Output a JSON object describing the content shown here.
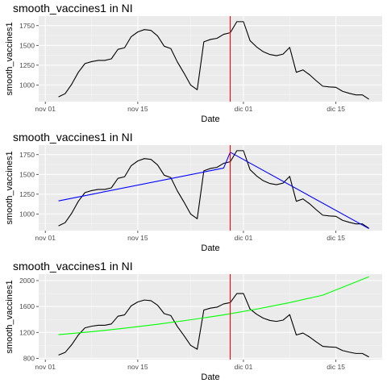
{
  "colors": {
    "panel_bg": "#ebebeb",
    "grid_major": "#ffffff",
    "data_line": "#000000",
    "vline": "#ff0000",
    "trend_panel2": "#0000ff",
    "trend_panel3": "#00ff00",
    "tick_text": "#4d4d4d"
  },
  "chart_data": [
    {
      "type": "line",
      "title": "smooth_vaccines1 in NI",
      "xlabel": "Date",
      "ylabel": "smooth_vaccines1",
      "x_ticks": [
        "nov 01",
        "nov 15",
        "dic 01",
        "dic 15"
      ],
      "y_ticks": [
        1000,
        1250,
        1500,
        1750
      ],
      "xlim": [
        "2020-10-31",
        "2020-12-22"
      ],
      "ylim": [
        790,
        1870
      ],
      "grid": true,
      "vline": "2020-11-29",
      "series": [
        {
          "x": [
            "2020-11-03",
            "2020-11-04",
            "2020-11-05",
            "2020-11-06",
            "2020-11-07",
            "2020-11-08",
            "2020-11-09",
            "2020-11-10",
            "2020-11-11",
            "2020-11-12",
            "2020-11-13",
            "2020-11-14",
            "2020-11-15",
            "2020-11-16",
            "2020-11-17",
            "2020-11-18",
            "2020-11-19",
            "2020-11-20",
            "2020-11-21",
            "2020-11-22",
            "2020-11-23",
            "2020-11-24",
            "2020-11-25",
            "2020-11-26",
            "2020-11-27",
            "2020-11-28",
            "2020-11-29",
            "2020-11-30",
            "2020-12-01",
            "2020-12-02",
            "2020-12-03",
            "2020-12-04",
            "2020-12-05",
            "2020-12-06",
            "2020-12-07",
            "2020-12-08",
            "2020-12-09",
            "2020-12-10",
            "2020-12-11",
            "2020-12-12",
            "2020-12-13",
            "2020-12-14",
            "2020-12-15",
            "2020-12-16",
            "2020-12-17",
            "2020-12-18",
            "2020-12-19",
            "2020-12-20"
          ],
          "y": [
            850,
            890,
            1010,
            1160,
            1270,
            1295,
            1310,
            1310,
            1330,
            1450,
            1470,
            1610,
            1670,
            1700,
            1690,
            1620,
            1490,
            1460,
            1290,
            1150,
            1000,
            940,
            1545,
            1575,
            1590,
            1640,
            1660,
            1800,
            1800,
            1560,
            1480,
            1420,
            1385,
            1370,
            1390,
            1475,
            1160,
            1190,
            1130,
            1055,
            985,
            975,
            970,
            920,
            895,
            875,
            875,
            820
          ]
        }
      ]
    },
    {
      "type": "line",
      "title": "smooth_vaccines1 in NI",
      "xlabel": "Date",
      "ylabel": "smooth_vaccines1",
      "x_ticks": [
        "nov 01",
        "nov 15",
        "dic 01",
        "dic 15"
      ],
      "y_ticks": [
        1000,
        1250,
        1500,
        1750
      ],
      "xlim": [
        "2020-10-31",
        "2020-12-22"
      ],
      "ylim": [
        790,
        1870
      ],
      "grid": true,
      "vline": "2020-11-29",
      "series": [
        {
          "x": [
            "2020-11-03",
            "2020-11-04",
            "2020-11-05",
            "2020-11-06",
            "2020-11-07",
            "2020-11-08",
            "2020-11-09",
            "2020-11-10",
            "2020-11-11",
            "2020-11-12",
            "2020-11-13",
            "2020-11-14",
            "2020-11-15",
            "2020-11-16",
            "2020-11-17",
            "2020-11-18",
            "2020-11-19",
            "2020-11-20",
            "2020-11-21",
            "2020-11-22",
            "2020-11-23",
            "2020-11-24",
            "2020-11-25",
            "2020-11-26",
            "2020-11-27",
            "2020-11-28",
            "2020-11-29",
            "2020-11-30",
            "2020-12-01",
            "2020-12-02",
            "2020-12-03",
            "2020-12-04",
            "2020-12-05",
            "2020-12-06",
            "2020-12-07",
            "2020-12-08",
            "2020-12-09",
            "2020-12-10",
            "2020-12-11",
            "2020-12-12",
            "2020-12-13",
            "2020-12-14",
            "2020-12-15",
            "2020-12-16",
            "2020-12-17",
            "2020-12-18",
            "2020-12-19",
            "2020-12-20"
          ],
          "y": [
            850,
            890,
            1010,
            1160,
            1270,
            1295,
            1310,
            1310,
            1330,
            1450,
            1470,
            1610,
            1670,
            1700,
            1690,
            1620,
            1490,
            1460,
            1290,
            1150,
            1000,
            940,
            1545,
            1575,
            1590,
            1640,
            1660,
            1800,
            1800,
            1560,
            1480,
            1420,
            1385,
            1370,
            1390,
            1475,
            1160,
            1190,
            1130,
            1055,
            985,
            975,
            970,
            920,
            895,
            875,
            875,
            820
          ]
        },
        {
          "color": "#0000ff",
          "x": [
            "2020-11-03",
            "2020-11-28",
            "2020-11-29",
            "2020-12-20"
          ],
          "y": [
            1165,
            1580,
            1780,
            815
          ]
        }
      ]
    },
    {
      "type": "line",
      "title": "smooth_vaccines1 in NI",
      "xlabel": "Date",
      "ylabel": "smooth_vaccines1",
      "x_ticks": [
        "nov 01",
        "nov 15",
        "dic 01",
        "dic 15"
      ],
      "y_ticks": [
        800,
        1200,
        1600,
        2000
      ],
      "xlim": [
        "2020-10-31",
        "2020-12-22"
      ],
      "ylim": [
        780,
        2100
      ],
      "grid": true,
      "vline": "2020-11-29",
      "series": [
        {
          "x": [
            "2020-11-03",
            "2020-11-04",
            "2020-11-05",
            "2020-11-06",
            "2020-11-07",
            "2020-11-08",
            "2020-11-09",
            "2020-11-10",
            "2020-11-11",
            "2020-11-12",
            "2020-11-13",
            "2020-11-14",
            "2020-11-15",
            "2020-11-16",
            "2020-11-17",
            "2020-11-18",
            "2020-11-19",
            "2020-11-20",
            "2020-11-21",
            "2020-11-22",
            "2020-11-23",
            "2020-11-24",
            "2020-11-25",
            "2020-11-26",
            "2020-11-27",
            "2020-11-28",
            "2020-11-29",
            "2020-11-30",
            "2020-12-01",
            "2020-12-02",
            "2020-12-03",
            "2020-12-04",
            "2020-12-05",
            "2020-12-06",
            "2020-12-07",
            "2020-12-08",
            "2020-12-09",
            "2020-12-10",
            "2020-12-11",
            "2020-12-12",
            "2020-12-13",
            "2020-12-14",
            "2020-12-15",
            "2020-12-16",
            "2020-12-17",
            "2020-12-18",
            "2020-12-19",
            "2020-12-20"
          ],
          "y": [
            850,
            890,
            1010,
            1160,
            1270,
            1295,
            1310,
            1310,
            1330,
            1450,
            1470,
            1610,
            1670,
            1700,
            1690,
            1620,
            1490,
            1460,
            1290,
            1150,
            1000,
            940,
            1545,
            1575,
            1590,
            1640,
            1660,
            1800,
            1800,
            1560,
            1480,
            1420,
            1385,
            1370,
            1390,
            1475,
            1160,
            1190,
            1130,
            1055,
            985,
            975,
            970,
            920,
            895,
            875,
            875,
            820
          ]
        },
        {
          "color": "#00ff00",
          "x": [
            "2020-11-03",
            "2020-11-08",
            "2020-11-13",
            "2020-11-18",
            "2020-11-23",
            "2020-11-28",
            "2020-12-03",
            "2020-12-08",
            "2020-12-13",
            "2020-12-20"
          ],
          "y": [
            1165,
            1210,
            1265,
            1325,
            1395,
            1470,
            1560,
            1660,
            1775,
            2060
          ]
        }
      ]
    }
  ]
}
